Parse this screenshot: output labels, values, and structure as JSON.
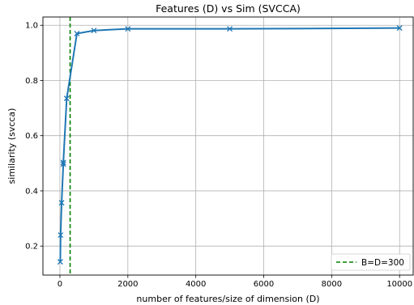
{
  "chart_data": {
    "type": "line",
    "title": "Features (D) vs Sim (SVCCA)",
    "xlabel": "number of features/size of dimension (D)",
    "ylabel": "similarity (svcca)",
    "xlim": [
      -500,
      10400
    ],
    "ylim": [
      0.095,
      1.03
    ],
    "xticks": [
      0,
      2000,
      4000,
      6000,
      8000,
      10000
    ],
    "yticks": [
      0.2,
      0.4,
      0.6,
      0.8,
      1.0
    ],
    "grid": true,
    "legend_position": "bottom-right",
    "series": [
      {
        "values": [
          {
            "x": 10,
            "y": 0.143
          },
          {
            "x": 20,
            "y": 0.24
          },
          {
            "x": 50,
            "y": 0.357
          },
          {
            "x": 100,
            "y": 0.497
          },
          {
            "x": 100,
            "y": 0.503
          },
          {
            "x": 200,
            "y": 0.735
          },
          {
            "x": 500,
            "y": 0.97
          },
          {
            "x": 1000,
            "y": 0.981
          },
          {
            "x": 2000,
            "y": 0.987
          },
          {
            "x": 5000,
            "y": 0.987
          },
          {
            "x": 10000,
            "y": 0.99
          }
        ],
        "color": "#1f77b4",
        "marker": "x"
      }
    ],
    "reference_lines": [
      {
        "orientation": "vertical",
        "x": 300,
        "label": "B=D=300",
        "color": "#008000",
        "style": "dashed"
      }
    ]
  }
}
